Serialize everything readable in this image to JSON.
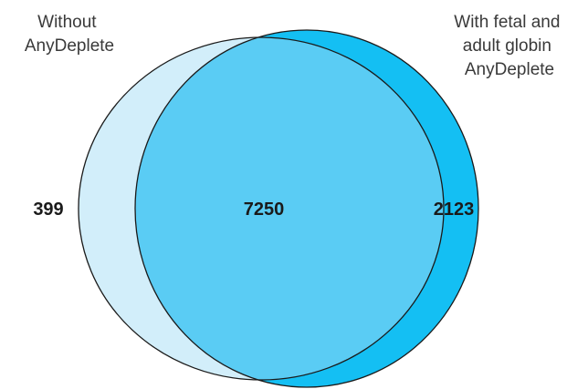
{
  "sets": [
    {
      "label_lines": [
        "Without",
        "AnyDeplete"
      ],
      "fill_color": "#d2eefa"
    },
    {
      "label_lines": [
        "With fetal and",
        "adult globin",
        "AnyDeplete"
      ],
      "fill_color": "#14bff3"
    }
  ],
  "overlap_fill_color": "#5accf4",
  "outline_color": "#1a1a1a",
  "counts": {
    "only_without": "399",
    "both": "7250",
    "only_with": "2123"
  }
}
